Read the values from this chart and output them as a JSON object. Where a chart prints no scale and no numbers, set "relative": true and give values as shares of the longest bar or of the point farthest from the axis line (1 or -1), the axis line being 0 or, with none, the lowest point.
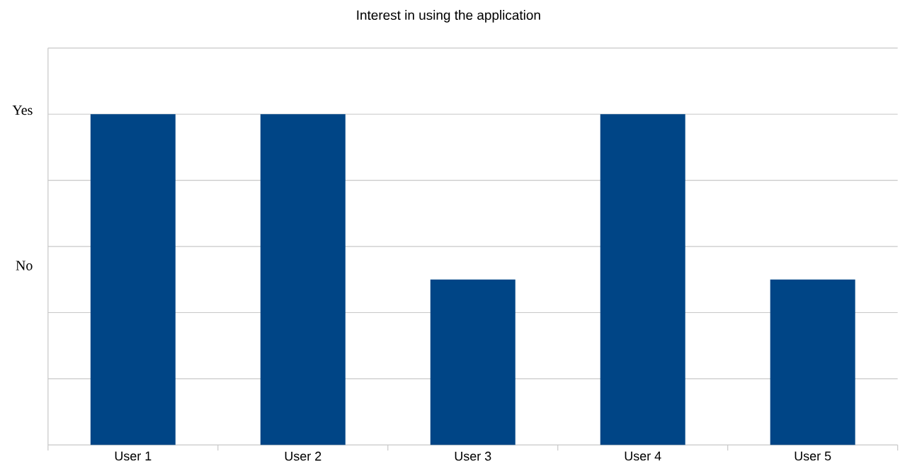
{
  "chart_data": {
    "type": "bar",
    "title": "Interest in using the application",
    "categories": [
      "User 1",
      "User 2",
      "User 3",
      "User 4",
      "User 5"
    ],
    "values": [
      1,
      1,
      0.5,
      1,
      0.5
    ],
    "color": "#004586",
    "relative": true,
    "annotations": [
      "Yes",
      "No"
    ],
    "grid": "y"
  }
}
